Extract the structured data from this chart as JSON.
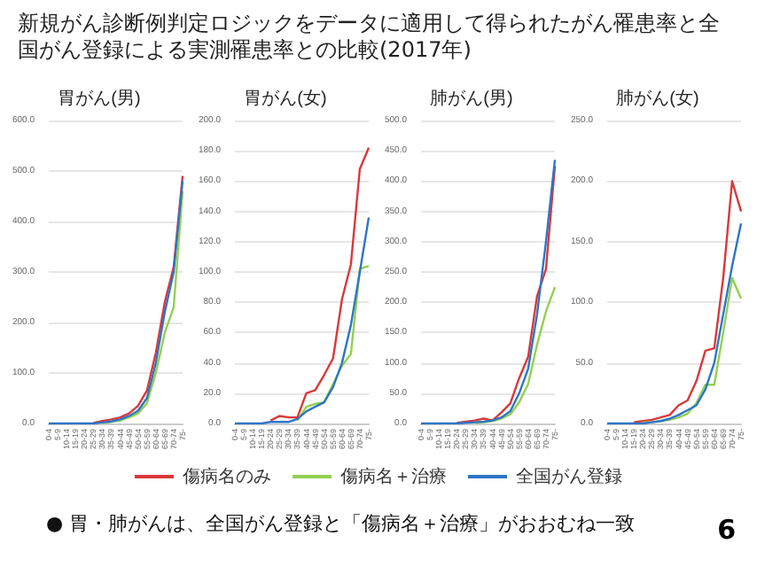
{
  "chart_data": [
    {
      "type": "line",
      "title": "胃がん(男)",
      "annotations": [
        "新規がん診断例判定ロジックをデータに適用して得られたがん罹患率と全国がん登録による実測罹患率との比較(2017年)",
        "● 胃・肺がんは、全国がん登録と「傷病名＋治療」がおおむね一致",
        "6"
      ],
      "legend": "bottom",
      "grid": "y",
      "marker": "none",
      "line_style": "solid",
      "categories": [
        "0-4",
        "5-9",
        "10-14",
        "15-19",
        "20-24",
        "25-29",
        "30-34",
        "35-39",
        "40-44",
        "45-49",
        "50-54",
        "55-59",
        "60-64",
        "65-69",
        "70-74",
        "75-"
      ],
      "ylim": [
        0,
        600
      ],
      "yticks": [
        {
          "value": 0,
          "label": "0.0"
        },
        {
          "value": 100,
          "label": "100.0"
        },
        {
          "value": 200,
          "label": "200.0"
        },
        {
          "value": 300,
          "label": "300.0"
        },
        {
          "value": 400,
          "label": "400.0"
        },
        {
          "value": 500,
          "label": "500.0"
        },
        {
          "value": 600,
          "label": "600.0"
        }
      ],
      "series": [
        {
          "name": "傷病名のみ",
          "color": "#d9383a",
          "values": [
            null,
            null,
            null,
            null,
            null,
            1,
            5,
            8,
            12,
            20,
            35,
            65,
            140,
            240,
            310,
            490
          ]
        },
        {
          "name": "傷病名＋治療",
          "color": "#92d050",
          "values": [
            null,
            null,
            null,
            null,
            null,
            null,
            1,
            3,
            6,
            12,
            20,
            40,
            100,
            180,
            230,
            460
          ]
        },
        {
          "name": "全国がん登録",
          "color": "#2e75c6",
          "values": [
            0,
            0,
            0,
            0,
            0,
            0,
            2,
            4,
            8,
            15,
            25,
            50,
            120,
            220,
            300,
            480
          ]
        }
      ]
    },
    {
      "type": "line",
      "title": "胃がん(女)",
      "grid": "y",
      "marker": "none",
      "line_style": "solid",
      "categories": [
        "0-4",
        "5-9",
        "10-14",
        "15-19",
        "20-24",
        "25-29",
        "30-34",
        "35-39",
        "40-44",
        "45-49",
        "50-54",
        "55-59",
        "60-64",
        "65-69",
        "70-74",
        "75-"
      ],
      "ylim": [
        0,
        200
      ],
      "yticks": [
        {
          "value": 0,
          "label": "0.0"
        },
        {
          "value": 20,
          "label": "20.0"
        },
        {
          "value": 40,
          "label": "40.0"
        },
        {
          "value": 60,
          "label": "60.0"
        },
        {
          "value": 80,
          "label": "80.0"
        },
        {
          "value": 100,
          "label": "100.0"
        },
        {
          "value": 120,
          "label": "120.0"
        },
        {
          "value": 140,
          "label": "140.0"
        },
        {
          "value": 160,
          "label": "160.0"
        },
        {
          "value": 180,
          "label": "180.0"
        },
        {
          "value": 200,
          "label": "200.0"
        }
      ],
      "series": [
        {
          "color": "#d9383a",
          "values": [
            null,
            null,
            null,
            null,
            2,
            5,
            4,
            4,
            20,
            22,
            32,
            43,
            82,
            105,
            168,
            182
          ]
        },
        {
          "color": "#92d050",
          "values": [
            null,
            null,
            null,
            null,
            null,
            null,
            null,
            2,
            11,
            13,
            14,
            26,
            38,
            46,
            102,
            104
          ]
        },
        {
          "color": "#2e75c6",
          "values": [
            0,
            0,
            0,
            0,
            1,
            1,
            1,
            3,
            8,
            11,
            14,
            24,
            40,
            65,
            100,
            136
          ]
        }
      ]
    },
    {
      "type": "line",
      "title": "肺がん(男)",
      "grid": "y",
      "marker": "none",
      "line_style": "solid",
      "categories": [
        "0-4",
        "5-9",
        "10-14",
        "15-19",
        "20-24",
        "25-29",
        "30-34",
        "35-39",
        "40-44",
        "45-49",
        "50-54",
        "55-59",
        "60-64",
        "65-69",
        "70-74",
        "75-"
      ],
      "ylim": [
        0,
        500
      ],
      "yticks": [
        {
          "value": 0,
          "label": "0.0"
        },
        {
          "value": 50,
          "label": "50.0"
        },
        {
          "value": 100,
          "label": "100.0"
        },
        {
          "value": 150,
          "label": "150.0"
        },
        {
          "value": 200,
          "label": "200.0"
        },
        {
          "value": 250,
          "label": "250.0"
        },
        {
          "value": 300,
          "label": "300.0"
        },
        {
          "value": 350,
          "label": "350.0"
        },
        {
          "value": 400,
          "label": "400.0"
        },
        {
          "value": 450,
          "label": "450.0"
        },
        {
          "value": 500,
          "label": "500.0"
        }
      ],
      "series": [
        {
          "color": "#d9383a",
          "values": [
            null,
            null,
            null,
            null,
            1,
            3,
            5,
            8,
            5,
            18,
            33,
            75,
            110,
            210,
            255,
            425
          ]
        },
        {
          "color": "#92d050",
          "values": [
            null,
            null,
            null,
            null,
            null,
            null,
            1,
            2,
            4,
            8,
            15,
            35,
            65,
            130,
            185,
            225
          ]
        },
        {
          "color": "#2e75c6",
          "values": [
            0,
            0,
            0,
            0,
            0,
            1,
            2,
            3,
            5,
            10,
            20,
            50,
            90,
            180,
            300,
            435
          ]
        }
      ]
    },
    {
      "type": "line",
      "title": "肺がん(女)",
      "grid": "y",
      "marker": "none",
      "line_style": "solid",
      "categories": [
        "0-4",
        "5-9",
        "10-14",
        "15-19",
        "20-24",
        "25-29",
        "30-34",
        "35-39",
        "40-44",
        "45-49",
        "50-54",
        "55-59",
        "60-64",
        "65-69",
        "70-74",
        "75-"
      ],
      "ylim": [
        0,
        250
      ],
      "yticks": [
        {
          "value": 0,
          "label": "0.0"
        },
        {
          "value": 50,
          "label": "50.0"
        },
        {
          "value": 100,
          "label": "100.0"
        },
        {
          "value": 150,
          "label": "150.0"
        },
        {
          "value": 200,
          "label": "200.0"
        },
        {
          "value": 250,
          "label": "250.0"
        }
      ],
      "series": [
        {
          "color": "#d9383a",
          "values": [
            null,
            null,
            null,
            1,
            2,
            3,
            5,
            7,
            15,
            19,
            35,
            60,
            62,
            120,
            200,
            175
          ]
        },
        {
          "color": "#92d050",
          "values": [
            null,
            null,
            null,
            null,
            1,
            1,
            2,
            3,
            5,
            8,
            17,
            32,
            32,
            75,
            120,
            103
          ]
        },
        {
          "color": "#2e75c6",
          "values": [
            0,
            0,
            0,
            0,
            0,
            1,
            2,
            4,
            7,
            11,
            15,
            28,
            50,
            90,
            130,
            165
          ]
        }
      ]
    }
  ]
}
